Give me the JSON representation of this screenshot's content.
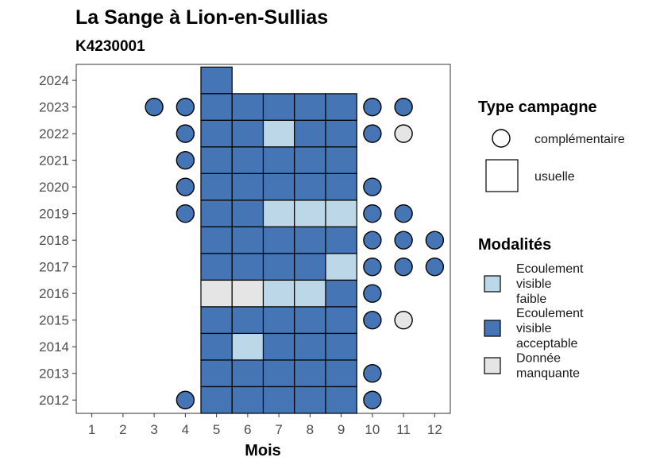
{
  "chart_data": {
    "type": "heatmap",
    "title": "La Sange à Lion-en-Sullias",
    "subtitle": "K4230001",
    "xlabel": "Mois",
    "ylabel": "",
    "x_ticks": [
      1,
      2,
      3,
      4,
      5,
      6,
      7,
      8,
      9,
      10,
      11,
      12
    ],
    "y_ticks": [
      2012,
      2013,
      2014,
      2015,
      2016,
      2017,
      2018,
      2019,
      2020,
      2021,
      2022,
      2023,
      2024
    ],
    "xlim": [
      0.5,
      12.5
    ],
    "ylim": [
      2011.5,
      2024.6
    ],
    "colors": {
      "faible": "#bcd8e8",
      "acceptable": "#4575b4",
      "manquante": "#e5e5e5"
    },
    "observations": [
      {
        "month": 5,
        "year": 2024,
        "modalite": "acceptable",
        "campagne": "usuelle"
      },
      {
        "month": 3,
        "year": 2023,
        "modalite": "acceptable",
        "campagne": "complementaire"
      },
      {
        "month": 4,
        "year": 2023,
        "modalite": "acceptable",
        "campagne": "complementaire"
      },
      {
        "month": 5,
        "year": 2023,
        "modalite": "acceptable",
        "campagne": "usuelle"
      },
      {
        "month": 6,
        "year": 2023,
        "modalite": "acceptable",
        "campagne": "usuelle"
      },
      {
        "month": 7,
        "year": 2023,
        "modalite": "acceptable",
        "campagne": "usuelle"
      },
      {
        "month": 8,
        "year": 2023,
        "modalite": "acceptable",
        "campagne": "usuelle"
      },
      {
        "month": 9,
        "year": 2023,
        "modalite": "acceptable",
        "campagne": "usuelle"
      },
      {
        "month": 10,
        "year": 2023,
        "modalite": "acceptable",
        "campagne": "complementaire"
      },
      {
        "month": 11,
        "year": 2023,
        "modalite": "acceptable",
        "campagne": "complementaire"
      },
      {
        "month": 4,
        "year": 2022,
        "modalite": "acceptable",
        "campagne": "complementaire"
      },
      {
        "month": 5,
        "year": 2022,
        "modalite": "acceptable",
        "campagne": "usuelle"
      },
      {
        "month": 6,
        "year": 2022,
        "modalite": "acceptable",
        "campagne": "usuelle"
      },
      {
        "month": 7,
        "year": 2022,
        "modalite": "faible",
        "campagne": "usuelle"
      },
      {
        "month": 8,
        "year": 2022,
        "modalite": "acceptable",
        "campagne": "usuelle"
      },
      {
        "month": 9,
        "year": 2022,
        "modalite": "acceptable",
        "campagne": "usuelle"
      },
      {
        "month": 10,
        "year": 2022,
        "modalite": "acceptable",
        "campagne": "complementaire"
      },
      {
        "month": 11,
        "year": 2022,
        "modalite": "manquante",
        "campagne": "complementaire"
      },
      {
        "month": 4,
        "year": 2021,
        "modalite": "acceptable",
        "campagne": "complementaire"
      },
      {
        "month": 5,
        "year": 2021,
        "modalite": "acceptable",
        "campagne": "usuelle"
      },
      {
        "month": 6,
        "year": 2021,
        "modalite": "acceptable",
        "campagne": "usuelle"
      },
      {
        "month": 7,
        "year": 2021,
        "modalite": "acceptable",
        "campagne": "usuelle"
      },
      {
        "month": 8,
        "year": 2021,
        "modalite": "acceptable",
        "campagne": "usuelle"
      },
      {
        "month": 9,
        "year": 2021,
        "modalite": "acceptable",
        "campagne": "usuelle"
      },
      {
        "month": 4,
        "year": 2020,
        "modalite": "acceptable",
        "campagne": "complementaire"
      },
      {
        "month": 5,
        "year": 2020,
        "modalite": "acceptable",
        "campagne": "usuelle"
      },
      {
        "month": 6,
        "year": 2020,
        "modalite": "acceptable",
        "campagne": "usuelle"
      },
      {
        "month": 7,
        "year": 2020,
        "modalite": "acceptable",
        "campagne": "usuelle"
      },
      {
        "month": 8,
        "year": 2020,
        "modalite": "acceptable",
        "campagne": "usuelle"
      },
      {
        "month": 9,
        "year": 2020,
        "modalite": "acceptable",
        "campagne": "usuelle"
      },
      {
        "month": 10,
        "year": 2020,
        "modalite": "acceptable",
        "campagne": "complementaire"
      },
      {
        "month": 4,
        "year": 2019,
        "modalite": "acceptable",
        "campagne": "complementaire"
      },
      {
        "month": 5,
        "year": 2019,
        "modalite": "acceptable",
        "campagne": "usuelle"
      },
      {
        "month": 6,
        "year": 2019,
        "modalite": "acceptable",
        "campagne": "usuelle"
      },
      {
        "month": 7,
        "year": 2019,
        "modalite": "faible",
        "campagne": "usuelle"
      },
      {
        "month": 8,
        "year": 2019,
        "modalite": "faible",
        "campagne": "usuelle"
      },
      {
        "month": 9,
        "year": 2019,
        "modalite": "faible",
        "campagne": "usuelle"
      },
      {
        "month": 10,
        "year": 2019,
        "modalite": "acceptable",
        "campagne": "complementaire"
      },
      {
        "month": 11,
        "year": 2019,
        "modalite": "acceptable",
        "campagne": "complementaire"
      },
      {
        "month": 5,
        "year": 2018,
        "modalite": "acceptable",
        "campagne": "usuelle"
      },
      {
        "month": 6,
        "year": 2018,
        "modalite": "acceptable",
        "campagne": "usuelle"
      },
      {
        "month": 7,
        "year": 2018,
        "modalite": "acceptable",
        "campagne": "usuelle"
      },
      {
        "month": 8,
        "year": 2018,
        "modalite": "acceptable",
        "campagne": "usuelle"
      },
      {
        "month": 9,
        "year": 2018,
        "modalite": "acceptable",
        "campagne": "usuelle"
      },
      {
        "month": 10,
        "year": 2018,
        "modalite": "acceptable",
        "campagne": "complementaire"
      },
      {
        "month": 11,
        "year": 2018,
        "modalite": "acceptable",
        "campagne": "complementaire"
      },
      {
        "month": 12,
        "year": 2018,
        "modalite": "acceptable",
        "campagne": "complementaire"
      },
      {
        "month": 5,
        "year": 2017,
        "modalite": "acceptable",
        "campagne": "usuelle"
      },
      {
        "month": 6,
        "year": 2017,
        "modalite": "acceptable",
        "campagne": "usuelle"
      },
      {
        "month": 7,
        "year": 2017,
        "modalite": "acceptable",
        "campagne": "usuelle"
      },
      {
        "month": 8,
        "year": 2017,
        "modalite": "acceptable",
        "campagne": "usuelle"
      },
      {
        "month": 9,
        "year": 2017,
        "modalite": "faible",
        "campagne": "usuelle"
      },
      {
        "month": 10,
        "year": 2017,
        "modalite": "acceptable",
        "campagne": "complementaire"
      },
      {
        "month": 11,
        "year": 2017,
        "modalite": "acceptable",
        "campagne": "complementaire"
      },
      {
        "month": 12,
        "year": 2017,
        "modalite": "acceptable",
        "campagne": "complementaire"
      },
      {
        "month": 5,
        "year": 2016,
        "modalite": "manquante",
        "campagne": "usuelle"
      },
      {
        "month": 6,
        "year": 2016,
        "modalite": "manquante",
        "campagne": "usuelle"
      },
      {
        "month": 7,
        "year": 2016,
        "modalite": "faible",
        "campagne": "usuelle"
      },
      {
        "month": 8,
        "year": 2016,
        "modalite": "faible",
        "campagne": "usuelle"
      },
      {
        "month": 9,
        "year": 2016,
        "modalite": "acceptable",
        "campagne": "usuelle"
      },
      {
        "month": 10,
        "year": 2016,
        "modalite": "acceptable",
        "campagne": "complementaire"
      },
      {
        "month": 5,
        "year": 2015,
        "modalite": "acceptable",
        "campagne": "usuelle"
      },
      {
        "month": 6,
        "year": 2015,
        "modalite": "acceptable",
        "campagne": "usuelle"
      },
      {
        "month": 7,
        "year": 2015,
        "modalite": "acceptable",
        "campagne": "usuelle"
      },
      {
        "month": 8,
        "year": 2015,
        "modalite": "acceptable",
        "campagne": "usuelle"
      },
      {
        "month": 9,
        "year": 2015,
        "modalite": "acceptable",
        "campagne": "usuelle"
      },
      {
        "month": 10,
        "year": 2015,
        "modalite": "acceptable",
        "campagne": "complementaire"
      },
      {
        "month": 11,
        "year": 2015,
        "modalite": "manquante",
        "campagne": "complementaire"
      },
      {
        "month": 5,
        "year": 2014,
        "modalite": "acceptable",
        "campagne": "usuelle"
      },
      {
        "month": 6,
        "year": 2014,
        "modalite": "faible",
        "campagne": "usuelle"
      },
      {
        "month": 7,
        "year": 2014,
        "modalite": "acceptable",
        "campagne": "usuelle"
      },
      {
        "month": 8,
        "year": 2014,
        "modalite": "acceptable",
        "campagne": "usuelle"
      },
      {
        "month": 9,
        "year": 2014,
        "modalite": "acceptable",
        "campagne": "usuelle"
      },
      {
        "month": 5,
        "year": 2013,
        "modalite": "acceptable",
        "campagne": "usuelle"
      },
      {
        "month": 6,
        "year": 2013,
        "modalite": "acceptable",
        "campagne": "usuelle"
      },
      {
        "month": 7,
        "year": 2013,
        "modalite": "acceptable",
        "campagne": "usuelle"
      },
      {
        "month": 8,
        "year": 2013,
        "modalite": "acceptable",
        "campagne": "usuelle"
      },
      {
        "month": 9,
        "year": 2013,
        "modalite": "acceptable",
        "campagne": "usuelle"
      },
      {
        "month": 10,
        "year": 2013,
        "modalite": "acceptable",
        "campagne": "complementaire"
      },
      {
        "month": 4,
        "year": 2012,
        "modalite": "acceptable",
        "campagne": "complementaire"
      },
      {
        "month": 5,
        "year": 2012,
        "modalite": "acceptable",
        "campagne": "usuelle"
      },
      {
        "month": 6,
        "year": 2012,
        "modalite": "acceptable",
        "campagne": "usuelle"
      },
      {
        "month": 7,
        "year": 2012,
        "modalite": "acceptable",
        "campagne": "usuelle"
      },
      {
        "month": 8,
        "year": 2012,
        "modalite": "acceptable",
        "campagne": "usuelle"
      },
      {
        "month": 9,
        "year": 2012,
        "modalite": "acceptable",
        "campagne": "usuelle"
      },
      {
        "month": 10,
        "year": 2012,
        "modalite": "acceptable",
        "campagne": "complementaire"
      }
    ],
    "legend": {
      "placement": "right",
      "type_title": "Type campagne",
      "type_items": [
        {
          "key": "complementaire",
          "label": "complémentaire"
        },
        {
          "key": "usuelle",
          "label": "usuelle"
        }
      ],
      "modalites_title": "Modalités",
      "modalite_items": [
        {
          "key": "faible",
          "lines": [
            "Ecoulement",
            "visible",
            "faible"
          ]
        },
        {
          "key": "acceptable",
          "lines": [
            "Ecoulement",
            "visible",
            "acceptable"
          ]
        },
        {
          "key": "manquante",
          "lines": [
            "Donnée",
            "manquante"
          ]
        }
      ]
    }
  }
}
